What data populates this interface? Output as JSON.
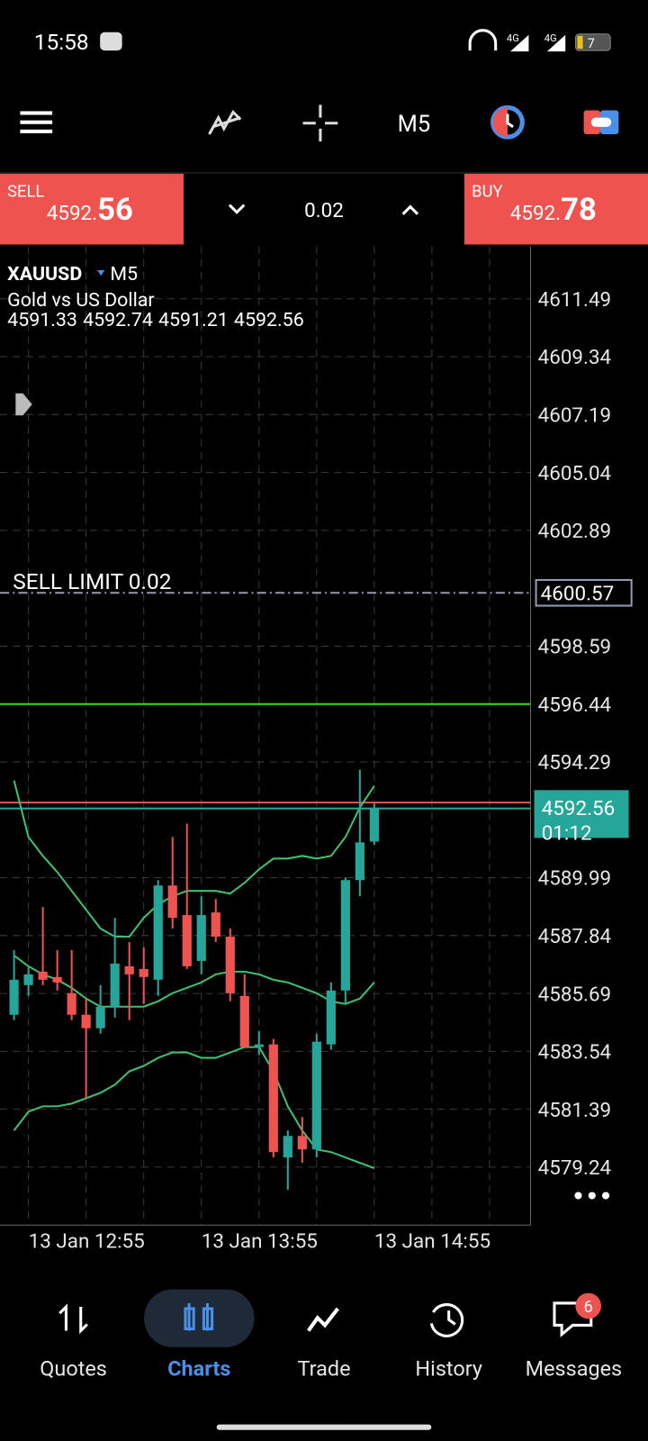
{
  "status_bar": {
    "time": "15:58",
    "battery": "7"
  },
  "toolbar": {
    "timeframe": "M5"
  },
  "trade_panel": {
    "sell_label": "SELL",
    "sell_price_main": "4592.",
    "sell_price_big": "56",
    "volume": "0.02",
    "buy_label": "BUY",
    "buy_price_main": "4592.",
    "buy_price_big": "78"
  },
  "chart_data": {
    "type": "candlestick",
    "symbol": "XAUUSD",
    "timeframe": "M5",
    "description": "Gold vs US Dollar",
    "categories": [
      null,
      "13 Jan 12:55",
      null,
      null,
      null,
      null,
      null,
      null,
      null,
      null,
      null,
      null,
      null,
      "13 Jan 13:55",
      null,
      null,
      null,
      null,
      null,
      null,
      null,
      null,
      null,
      null,
      null,
      "13 Jan 14:55"
    ],
    "open": [
      4584.9,
      4586.0,
      4586.5,
      4586.3,
      4585.7,
      4584.9,
      4584.4,
      4585.2,
      4586.7,
      4586.6,
      4586.2,
      4589.7,
      4588.6,
      4586.9,
      4588.7,
      4587.8,
      4585.6,
      4583.7,
      4583.8,
      4579.6,
      4580.4,
      4579.9,
      4583.8,
      4585.8,
      4589.9,
      4591.33
    ],
    "high": [
      4587.3,
      4586.7,
      4588.9,
      4587.3,
      4587.3,
      4585.5,
      4586.0,
      4588.5,
      4587.6,
      4587.4,
      4589.9,
      4591.5,
      4592.0,
      4589.3,
      4589.2,
      4588.1,
      4586.4,
      4584.3,
      4584.0,
      4580.6,
      4581.1,
      4584.2,
      4586.1,
      4590.0,
      4594.0,
      4592.74
    ],
    "low": [
      4584.7,
      4585.6,
      4586.0,
      4585.8,
      4584.7,
      4581.8,
      4584.2,
      4584.8,
      4584.7,
      4585.3,
      4585.6,
      4588.1,
      4586.6,
      4586.4,
      4587.6,
      4585.4,
      4583.7,
      4583.4,
      4579.6,
      4578.4,
      4579.4,
      4579.6,
      4583.6,
      4585.3,
      4589.3,
      4591.21
    ],
    "close": [
      4586.2,
      4586.4,
      4586.2,
      4586.1,
      4584.9,
      4584.4,
      4585.2,
      4586.8,
      4586.4,
      4586.3,
      4589.7,
      4588.5,
      4586.7,
      4588.6,
      4587.8,
      4585.7,
      4583.7,
      4583.8,
      4579.8,
      4580.4,
      4579.9,
      4583.9,
      4585.8,
      4589.9,
      4591.3,
      4592.56
    ],
    "upper_band": [
      4593.6,
      4591.5,
      4590.8,
      4590.2,
      4589.5,
      4588.8,
      4588.1,
      4587.8,
      4587.8,
      4588.5,
      4589.0,
      4589.3,
      4589.5,
      4589.5,
      4589.5,
      4589.4,
      4589.8,
      4590.3,
      4590.7,
      4590.7,
      4590.8,
      4590.7,
      4590.8,
      4591.5,
      4592.6,
      4593.4
    ],
    "middle_band": [
      4587.1,
      4586.7,
      4586.4,
      4586.2,
      4585.9,
      4585.5,
      4585.2,
      4585.2,
      4585.2,
      4585.2,
      4585.4,
      4585.7,
      4585.9,
      4586.1,
      4586.4,
      4586.5,
      4586.5,
      4586.4,
      4586.2,
      4586.1,
      4585.9,
      4585.7,
      4585.4,
      4585.3,
      4585.5,
      4586.1
    ],
    "lower_band": [
      4580.6,
      4581.3,
      4581.5,
      4581.5,
      4581.6,
      4581.8,
      4582.0,
      4582.3,
      4582.8,
      4583.0,
      4583.3,
      4583.5,
      4583.5,
      4583.3,
      4583.3,
      4583.5,
      4583.7,
      4583.7,
      4582.8,
      4581.5,
      4580.6,
      4579.9,
      4579.8,
      4579.6,
      4579.4,
      4579.2
    ],
    "up_color": "#26a69a",
    "down_color": "#ef5350",
    "band_color": "#3fbf6f",
    "price_lines": [
      {
        "label": "SELL LIMIT 0.02",
        "value": 4600.57,
        "color": "#8f9db3",
        "dashed": true
      },
      {
        "value": 4596.44,
        "color": "#4cd12a",
        "dashed": false
      },
      {
        "value": 4592.78,
        "color": "#ef5350",
        "dashed": false
      },
      {
        "value": 4592.56,
        "color": "#26a69a",
        "dashed": false,
        "time_label": "01:12"
      }
    ],
    "ylim": [
      4577.09,
      4613.44
    ],
    "yticks": [
      4611.49,
      4609.34,
      4607.19,
      4605.04,
      4602.89,
      4598.59,
      4596.44,
      4594.29,
      4589.99,
      4587.84,
      4585.69,
      4583.54,
      4581.39,
      4579.24
    ],
    "grid": true
  },
  "bottom_nav": {
    "tabs": [
      "Quotes",
      "Charts",
      "Trade",
      "History",
      "Messages"
    ],
    "active": "Charts",
    "messages_badge": "6"
  }
}
